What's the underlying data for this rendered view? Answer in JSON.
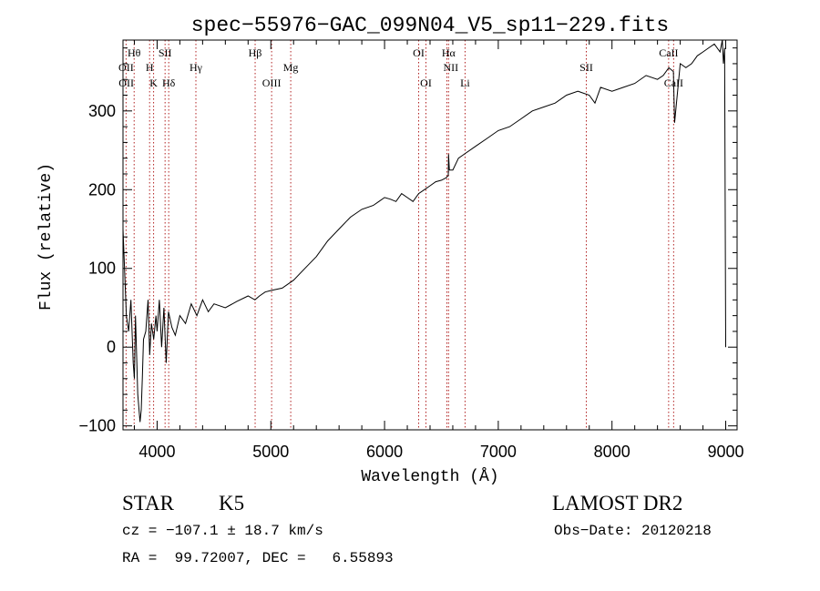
{
  "chart_data": {
    "type": "line",
    "title": "spec−55976−GAC_099N04_V5_sp11−229.fits",
    "xlabel": "Wavelength (Å)",
    "ylabel": "Flux (relative)",
    "xlim": [
      3700,
      9100
    ],
    "ylim": [
      -105,
      390
    ],
    "xticks": [
      4000,
      5000,
      6000,
      7000,
      8000,
      9000
    ],
    "xtick_labels": [
      "4000",
      "5000",
      "6000",
      "7000",
      "8000",
      "9000"
    ],
    "yticks": [
      -100,
      0,
      100,
      200,
      300
    ],
    "ytick_labels": [
      "−100",
      "0",
      "100",
      "200",
      "300"
    ],
    "grid": false,
    "series": [
      {
        "color": "#000000",
        "x": [
          3700,
          3730,
          3750,
          3770,
          3790,
          3800,
          3810,
          3830,
          3850,
          3860,
          3870,
          3880,
          3900,
          3920,
          3935,
          3950,
          3970,
          3990,
          4000,
          4020,
          4040,
          4060,
          4080,
          4100,
          4130,
          4160,
          4200,
          4250,
          4300,
          4350,
          4400,
          4450,
          4500,
          4600,
          4700,
          4800,
          4860,
          4900,
          4950,
          5000,
          5100,
          5200,
          5300,
          5400,
          5500,
          5600,
          5700,
          5800,
          5900,
          5950,
          6000,
          6050,
          6100,
          6150,
          6200,
          6250,
          6300,
          6350,
          6400,
          6450,
          6500,
          6540,
          6560,
          6563,
          6570,
          6600,
          6650,
          6700,
          6800,
          6900,
          7000,
          7100,
          7200,
          7300,
          7400,
          7500,
          7600,
          7700,
          7800,
          7850,
          7900,
          8000,
          8100,
          8200,
          8300,
          8400,
          8450,
          8500,
          8540,
          8550,
          8600,
          8650,
          8700,
          8750,
          8800,
          8850,
          8900,
          8950,
          8970,
          8980,
          8990,
          9000
        ],
        "y": [
          150,
          40,
          20,
          60,
          -20,
          -40,
          40,
          -60,
          -95,
          -80,
          -40,
          10,
          20,
          60,
          -10,
          30,
          10,
          40,
          20,
          60,
          0,
          50,
          -20,
          45,
          25,
          15,
          40,
          30,
          55,
          40,
          60,
          45,
          55,
          50,
          58,
          65,
          60,
          65,
          70,
          72,
          75,
          85,
          100,
          115,
          135,
          150,
          165,
          175,
          180,
          185,
          190,
          188,
          185,
          195,
          190,
          185,
          195,
          200,
          205,
          210,
          212,
          215,
          218,
          245,
          225,
          225,
          240,
          245,
          255,
          265,
          275,
          280,
          290,
          300,
          305,
          310,
          320,
          325,
          320,
          310,
          330,
          325,
          330,
          335,
          345,
          340,
          345,
          355,
          350,
          285,
          360,
          355,
          360,
          370,
          375,
          380,
          385,
          375,
          390,
          360,
          380,
          0
        ]
      }
    ],
    "line_labels": [
      {
        "label": "Hθ",
        "x": 3798,
        "row": 1
      },
      {
        "label": "OII",
        "x": 3727,
        "row": 2
      },
      {
        "label": "OII",
        "x": 3729,
        "row": 3
      },
      {
        "label": "H",
        "x": 3934,
        "row": 2
      },
      {
        "label": "K",
        "x": 3969,
        "row": 3
      },
      {
        "label": "SII",
        "x": 4070,
        "row": 1
      },
      {
        "label": "Hδ",
        "x": 4102,
        "row": 3
      },
      {
        "label": "Hγ",
        "x": 4341,
        "row": 2
      },
      {
        "label": "Hβ",
        "x": 4862,
        "row": 1
      },
      {
        "label": "OIII",
        "x": 5007,
        "row": 3
      },
      {
        "label": "Mg",
        "x": 5175,
        "row": 2
      },
      {
        "label": "OI",
        "x": 6300,
        "row": 1
      },
      {
        "label": "OI",
        "x": 6364,
        "row": 3
      },
      {
        "label": "Hα",
        "x": 6563,
        "row": 1
      },
      {
        "label": "NII",
        "x": 6583,
        "row": 2
      },
      {
        "label": "Li",
        "x": 6708,
        "row": 3
      },
      {
        "label": "SII",
        "x": 7774,
        "row": 2
      },
      {
        "label": "CaII",
        "x": 8498,
        "row": 1
      },
      {
        "label": "CaII",
        "x": 8542,
        "row": 3
      }
    ],
    "marker_lines": [
      3727,
      3798,
      3934,
      3969,
      4070,
      4102,
      4341,
      4862,
      5007,
      5175,
      6300,
      6364,
      6548,
      6563,
      6708,
      7774,
      8498,
      8542
    ]
  },
  "footer": {
    "object_type": "STAR",
    "subclass": "K5",
    "survey": "LAMOST DR2",
    "redshift_text": "cz = −107.1 ± 18.7 km/s",
    "obs_date": "Obs−Date: 20120218",
    "coords": "RA =  99.72007, DEC =   6.55893"
  }
}
